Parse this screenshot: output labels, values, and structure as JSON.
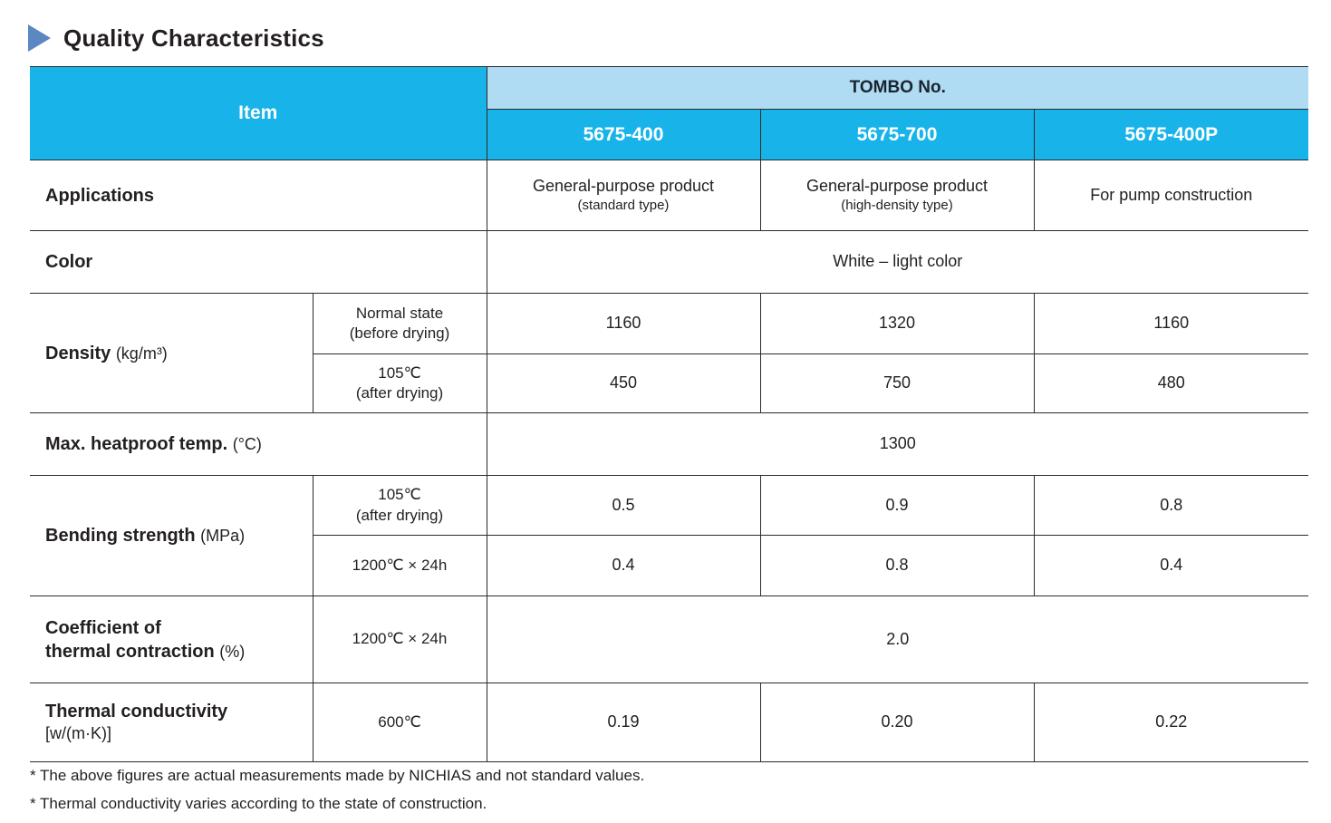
{
  "page": {
    "title": "Quality Characteristics",
    "footnotes": [
      "* The above figures are actual measurements made by NICHIAS and not standard values.",
      "* Thermal conductivity varies according to the state of construction."
    ]
  },
  "colors": {
    "header_cyan": "#18b4e9",
    "header_light_blue": "#b0dcf3",
    "border": "#2b2b2b",
    "title_arrow_blue": "#5b87c2",
    "header_text_white": "#ffffff"
  },
  "table": {
    "header": {
      "item_label": "Item",
      "tombo_label": "TOMBO No.",
      "product_codes": [
        "5675-400",
        "5675-700",
        "5675-400P"
      ]
    },
    "rows": {
      "applications": {
        "label": "Applications",
        "values": [
          {
            "main": "General-purpose product",
            "sub": "(standard type)"
          },
          {
            "main": "General-purpose product",
            "sub": "(high-density type)"
          },
          {
            "main": "For pump construction",
            "sub": ""
          }
        ]
      },
      "color": {
        "label": "Color",
        "value": "White – light color"
      },
      "density": {
        "label_bold": "Density",
        "label_unit": "(kg/m³)",
        "sub_rows": [
          {
            "condition_line1": "Normal state",
            "condition_line2": "(before drying)",
            "values": [
              "1160",
              "1320",
              "1160"
            ]
          },
          {
            "condition_line1": "105℃",
            "condition_line2": "(after drying)",
            "values": [
              "450",
              "750",
              "480"
            ]
          }
        ]
      },
      "max_heatproof": {
        "label_bold": "Max. heatproof temp.",
        "label_unit": "(°C)",
        "value": "1300"
      },
      "bending": {
        "label_bold": "Bending strength",
        "label_unit": "(MPa)",
        "sub_rows": [
          {
            "condition_line1": "105℃",
            "condition_line2": "(after drying)",
            "values": [
              "0.5",
              "0.9",
              "0.8"
            ]
          },
          {
            "condition_line1": "1200℃ × 24h",
            "condition_line2": "",
            "values": [
              "0.4",
              "0.8",
              "0.4"
            ]
          }
        ]
      },
      "coefficient": {
        "label_line1": "Coefficient of",
        "label_line2_bold": "thermal contraction",
        "label_unit": "(%)",
        "condition": "1200℃ × 24h",
        "value": "2.0"
      },
      "thermal_conductivity": {
        "label_bold": "Thermal conductivity",
        "label_unit": "[w/(m·K)]",
        "condition": "600℃",
        "values": [
          "0.19",
          "0.20",
          "0.22"
        ]
      }
    }
  }
}
